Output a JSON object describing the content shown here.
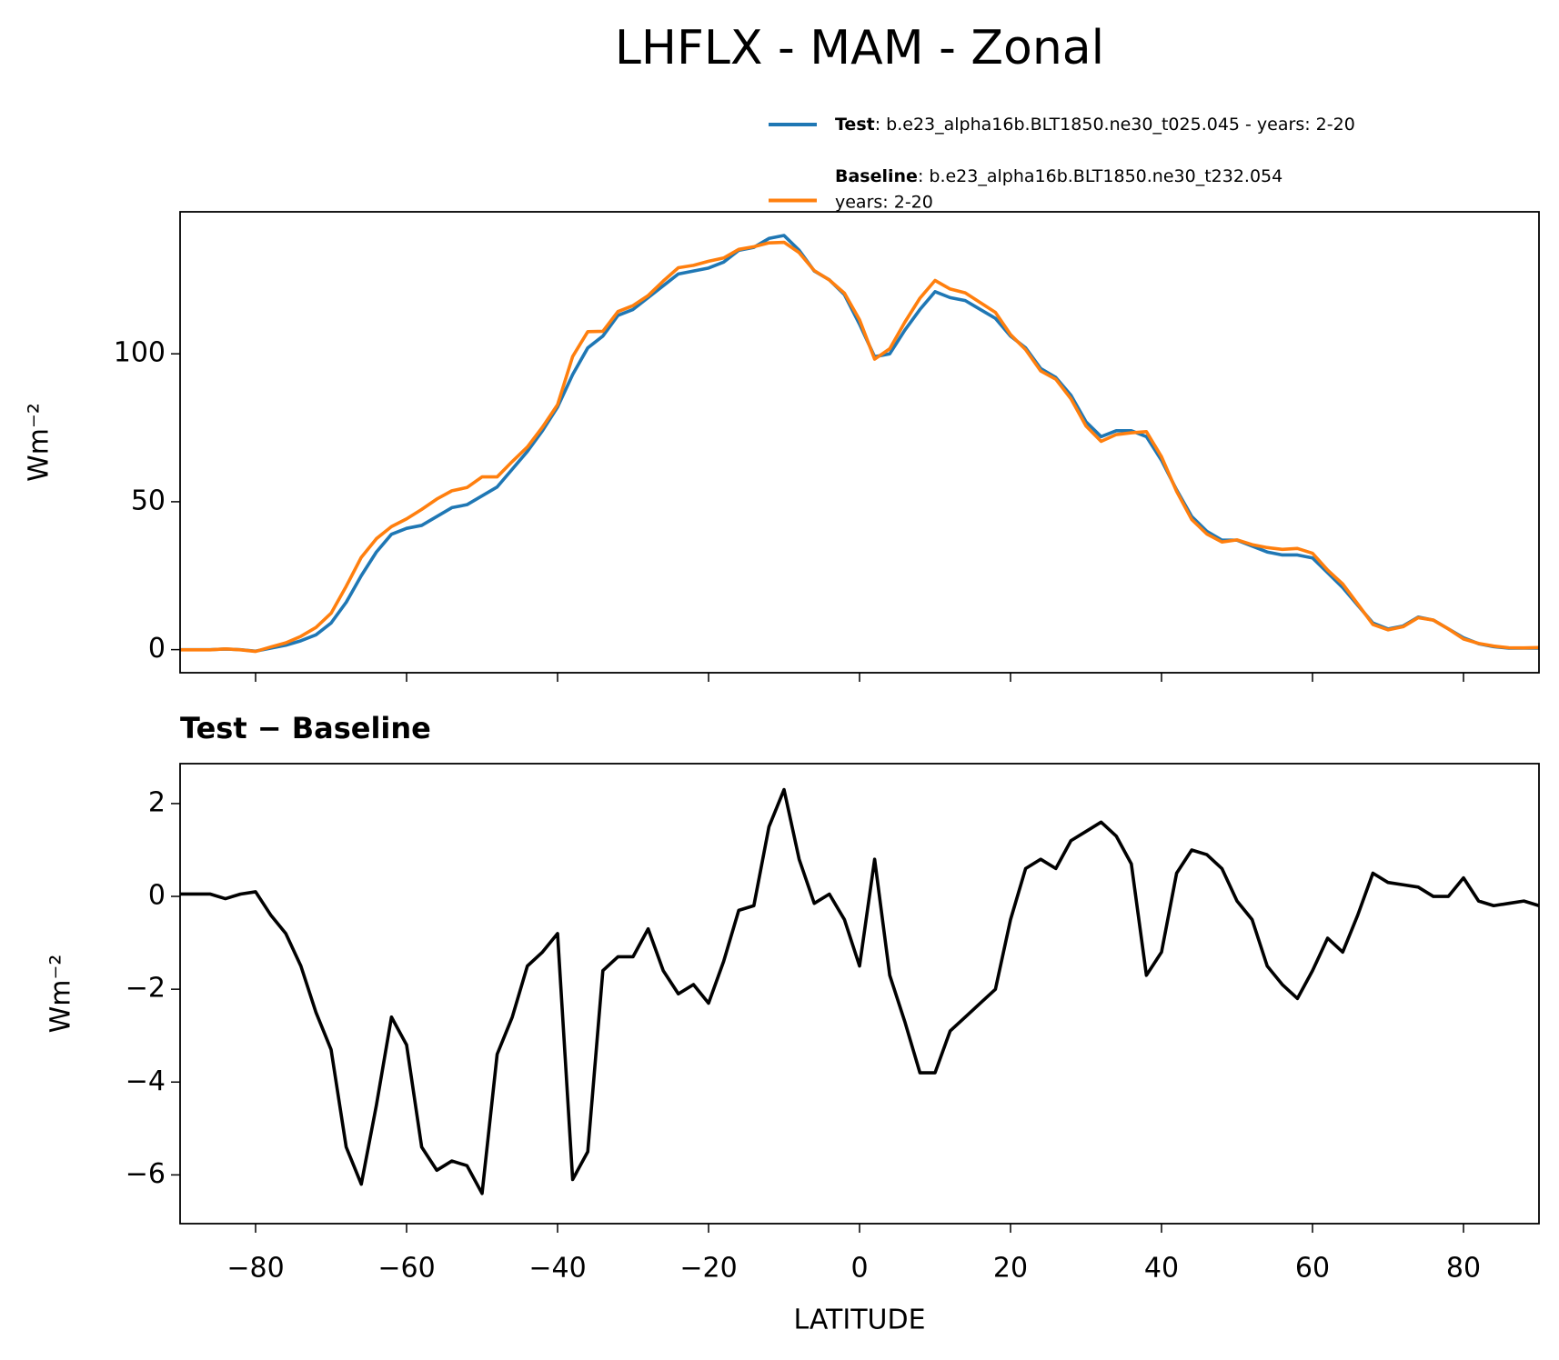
{
  "chart_data": [
    {
      "type": "line",
      "title": "LHFLX - MAM - Zonal",
      "ylabel": "Wm⁻²",
      "x": [
        -90,
        -88,
        -86,
        -84,
        -82,
        -80,
        -78,
        -76,
        -74,
        -72,
        -70,
        -68,
        -66,
        -64,
        -62,
        -60,
        -58,
        -56,
        -54,
        -52,
        -50,
        -48,
        -46,
        -44,
        -42,
        -40,
        -38,
        -36,
        -34,
        -32,
        -30,
        -28,
        -26,
        -24,
        -22,
        -20,
        -18,
        -16,
        -14,
        -12,
        -10,
        -8,
        -6,
        -4,
        -2,
        0,
        2,
        4,
        6,
        8,
        10,
        12,
        14,
        16,
        18,
        20,
        22,
        24,
        26,
        28,
        30,
        32,
        34,
        36,
        38,
        40,
        42,
        44,
        46,
        48,
        50,
        52,
        54,
        56,
        58,
        60,
        62,
        64,
        66,
        68,
        70,
        72,
        74,
        76,
        78,
        80,
        82,
        84,
        86,
        88,
        90
      ],
      "series": [
        {
          "name": "Test",
          "description": [
            ": b.e23_alpha16b.BLT1850.ne30_t025.045 - years: 2-20"
          ],
          "color": "#1f77b4",
          "values": [
            0,
            0,
            0,
            0.2,
            0,
            -0.5,
            0.5,
            1.5,
            3,
            5,
            9,
            16,
            25,
            33,
            39,
            41,
            42,
            45,
            48,
            49,
            52,
            55,
            61,
            67,
            74,
            82,
            93,
            102,
            106,
            113,
            115,
            119,
            123,
            127,
            128,
            129,
            131,
            135,
            136,
            139,
            140,
            135,
            128,
            125,
            120,
            110,
            99,
            100,
            108,
            115,
            121,
            119,
            118,
            115,
            112,
            106,
            102,
            95,
            92,
            86,
            77,
            72,
            74,
            74,
            72,
            64,
            54,
            45,
            40,
            37,
            37,
            35,
            33,
            32,
            32,
            31,
            26,
            21,
            15,
            9,
            7,
            8,
            11,
            10,
            7,
            4,
            2,
            1,
            0.5,
            0.5,
            0.5
          ]
        },
        {
          "name": "Baseline",
          "description": [
            ": b.e23_alpha16b.BLT1850.ne30_t232.054",
            "years: 2-20"
          ],
          "color": "#ff7f0e",
          "values": [
            -0.05,
            -0.05,
            -0.05,
            0.25,
            -0.05,
            -0.6,
            0.9,
            2.3,
            4.5,
            7.5,
            12.3,
            21.4,
            31.2,
            37.5,
            41.6,
            44.2,
            47.4,
            50.9,
            53.7,
            54.8,
            58.4,
            58.4,
            63.6,
            68.5,
            75.2,
            82.8,
            99.1,
            107.5,
            107.6,
            114.3,
            116.3,
            119.7,
            124.6,
            129.1,
            129.9,
            131.3,
            132.4,
            135.3,
            136.2,
            137.5,
            137.7,
            134.2,
            128.15,
            124.95,
            120.5,
            111.5,
            98.2,
            101.7,
            110.7,
            118.8,
            124.8,
            121.9,
            120.6,
            117.3,
            114,
            106.5,
            101.4,
            94.2,
            91.4,
            84.8,
            75.6,
            70.4,
            72.7,
            73.3,
            73.7,
            65.2,
            53.5,
            44,
            39.1,
            36.4,
            37.1,
            35.5,
            34.5,
            33.9,
            34.2,
            32.6,
            26.9,
            22.2,
            15.4,
            8.5,
            6.7,
            7.75,
            10.8,
            10,
            7,
            3.6,
            2.1,
            1.2,
            0.65,
            0.6,
            0.7
          ]
        }
      ],
      "xlim": [
        -90,
        90
      ],
      "xticks": [
        -80,
        -60,
        -40,
        -20,
        0,
        20,
        40,
        60,
        80
      ],
      "ylim": [
        -7.8,
        148
      ],
      "yticks": [
        0,
        50,
        100
      ]
    },
    {
      "type": "line",
      "title": "Test − Baseline",
      "ylabel": "Wm⁻²",
      "xlabel": "LATITUDE",
      "x": [
        -90,
        -88,
        -86,
        -84,
        -82,
        -80,
        -78,
        -76,
        -74,
        -72,
        -70,
        -68,
        -66,
        -64,
        -62,
        -60,
        -58,
        -56,
        -54,
        -52,
        -50,
        -48,
        -46,
        -44,
        -42,
        -40,
        -38,
        -36,
        -34,
        -32,
        -30,
        -28,
        -26,
        -24,
        -22,
        -20,
        -18,
        -16,
        -14,
        -12,
        -10,
        -8,
        -6,
        -4,
        -2,
        0,
        2,
        4,
        6,
        8,
        10,
        12,
        14,
        16,
        18,
        20,
        22,
        24,
        26,
        28,
        30,
        32,
        34,
        36,
        38,
        40,
        42,
        44,
        46,
        48,
        50,
        52,
        54,
        56,
        58,
        60,
        62,
        64,
        66,
        68,
        70,
        72,
        74,
        76,
        78,
        80,
        82,
        84,
        86,
        88,
        90
      ],
      "series": [
        {
          "color": "#000000",
          "values": [
            0.05,
            0.05,
            0.05,
            -0.05,
            0.05,
            0.1,
            -0.4,
            -0.8,
            -1.5,
            -2.5,
            -3.3,
            -5.4,
            -6.2,
            -4.5,
            -2.6,
            -3.2,
            -5.4,
            -5.9,
            -5.7,
            -5.8,
            -6.4,
            -3.4,
            -2.6,
            -1.5,
            -1.2,
            -0.8,
            -6.1,
            -5.5,
            -1.6,
            -1.3,
            -1.3,
            -0.7,
            -1.6,
            -2.1,
            -1.9,
            -2.3,
            -1.4,
            -0.3,
            -0.2,
            1.5,
            2.3,
            0.8,
            -0.15,
            0.05,
            -0.5,
            -1.5,
            0.8,
            -1.7,
            -2.7,
            -3.8,
            -3.8,
            -2.9,
            -2.6,
            -2.3,
            -2.0,
            -0.5,
            0.6,
            0.8,
            0.6,
            1.2,
            1.4,
            1.6,
            1.3,
            0.7,
            -1.7,
            -1.2,
            0.5,
            1.0,
            0.9,
            0.6,
            -0.1,
            -0.5,
            -1.5,
            -1.9,
            -2.2,
            -1.6,
            -0.9,
            -1.2,
            -0.4,
            0.5,
            0.3,
            0.25,
            0.2,
            0.0,
            0.0,
            0.4,
            -0.1,
            -0.2,
            -0.15,
            -0.1,
            -0.2
          ]
        }
      ],
      "xlim": [
        -90,
        90
      ],
      "xticks": [
        {
          "value": -80,
          "label": "−80"
        },
        {
          "value": -60,
          "label": "−60"
        },
        {
          "value": -40,
          "label": "−40"
        },
        {
          "value": -20,
          "label": "−20"
        },
        0,
        20,
        40,
        60,
        80
      ],
      "ylim": [
        -7.05,
        2.86
      ],
      "yticks": [
        {
          "value": -6,
          "label": "−6"
        },
        {
          "value": -4,
          "label": "−4"
        },
        {
          "value": -2,
          "label": "−2"
        },
        0,
        2
      ]
    }
  ]
}
